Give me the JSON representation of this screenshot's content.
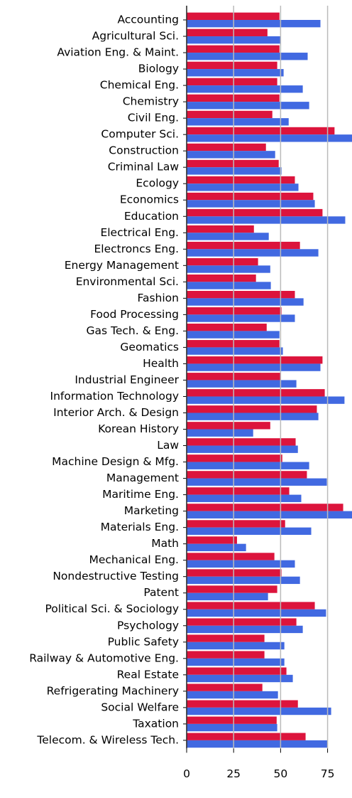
{
  "chart_data": {
    "type": "hbar",
    "categories": [
      "Accounting",
      "Agricultural Sci.",
      "Aviation Eng. & Maint.",
      "Biology",
      "Chemical Eng.",
      "Chemistry",
      "Civil Eng.",
      "Computer Sci.",
      "Construction",
      "Criminal Law",
      "Ecology",
      "Economics",
      "Education",
      "Electrical Eng.",
      "Electroncs Eng.",
      "Energy Management",
      "Environmental Sci.",
      "Fashion",
      "Food Processing",
      "Gas Tech. & Eng.",
      "Geomatics",
      "Health",
      "Industrial Engineer",
      "Information Technology",
      "Interior Arch. & Design",
      "Korean History",
      "Law",
      "Machine Design & Mfg.",
      "Management",
      "Maritime Eng.",
      "Marketing",
      "Materials Eng.",
      "Math",
      "Mechanical Eng.",
      "Nondestructive Testing",
      "Patent",
      "Political Sci. & Sociology",
      "Psychology",
      "Public Safety",
      "Railway & Automotive Eng.",
      "Real Estate",
      "Refrigerating Machinery",
      "Social Welfare",
      "Taxation",
      "Telecom. & Wireless Tech."
    ],
    "series": [
      {
        "color": "#dc143c",
        "values": [
          49.4,
          43,
          49.4,
          48.2,
          48.2,
          49.4,
          45.6,
          78.7,
          42.2,
          49,
          57.6,
          67.4,
          72.3,
          35.8,
          60.3,
          38,
          36.9,
          57.6,
          50.5,
          42.6,
          49.4,
          72.3,
          50.1,
          73.5,
          69.3,
          44.5,
          58,
          50.9,
          64,
          54.6,
          83.3,
          52.4,
          26.8,
          46.7,
          50.5,
          48.2,
          68.2,
          58.4,
          41.4,
          41.4,
          53.1,
          40.3,
          59.2,
          47.9,
          63.3
        ]
      },
      {
        "color": "#4169e1",
        "values": [
          71.2,
          50,
          64.4,
          51.6,
          61.8,
          65.2,
          54.3,
          88,
          47.1,
          50.5,
          59.5,
          68.2,
          84.4,
          43.7,
          70.1,
          44.5,
          44.8,
          62.2,
          57.6,
          49.4,
          51.2,
          71.2,
          58.4,
          84,
          70.1,
          35.4,
          59.2,
          65.2,
          74.6,
          61,
          88,
          66.3,
          31.6,
          57.6,
          60.3,
          43.3,
          74.2,
          61.8,
          52,
          52,
          56.5,
          48.6,
          76.9,
          48.2,
          75
        ]
      }
    ],
    "xlim": [
      0,
      88
    ],
    "xticks": [
      0,
      25,
      50,
      75
    ],
    "grid": true
  }
}
